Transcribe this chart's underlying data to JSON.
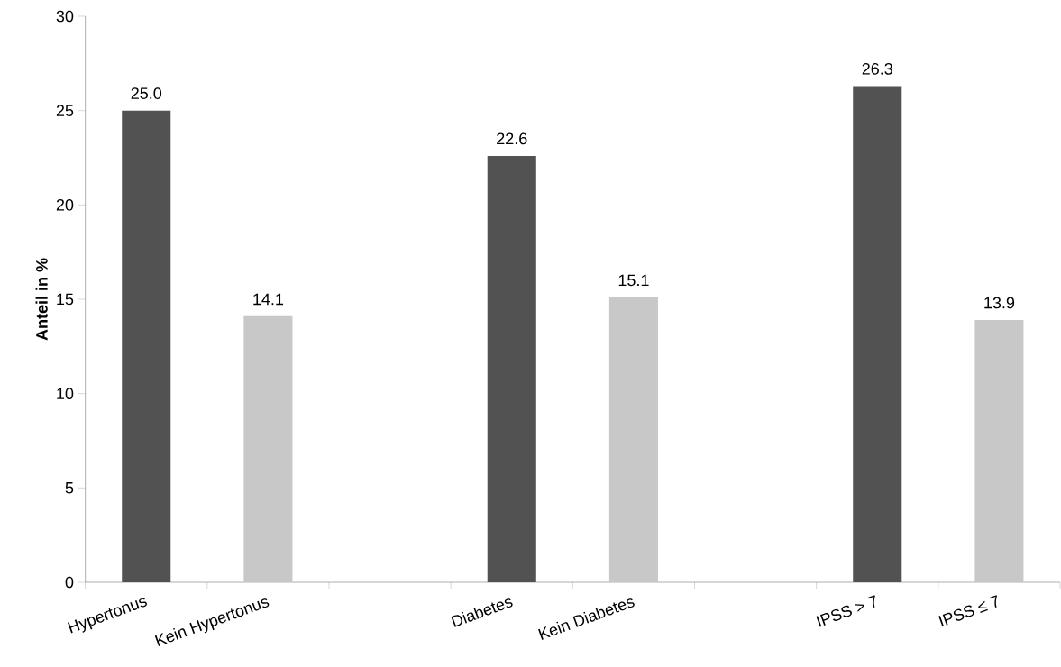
{
  "chart_data": {
    "type": "bar",
    "ylabel": "**Anteil in %**",
    "categories": [
      "Hypertonus",
      "Kein Hypertonus",
      null,
      "Diabetes",
      "Kein Diabetes",
      null,
      "IPSS > 7",
      "IPSS ≤ 7"
    ],
    "values": [
      25.0,
      14.1,
      null,
      22.6,
      15.1,
      null,
      26.3,
      13.9
    ],
    "value_labels": [
      "25.0",
      "14.1",
      null,
      "22.6",
      "15.1",
      null,
      "26.3",
      "13.9"
    ],
    "colors": [
      "#525252",
      "#c8c8c8",
      null,
      "#525252",
      "#c8c8c8",
      null,
      "#525252",
      "#c8c8c8"
    ],
    "ylim": [
      0,
      30
    ],
    "yticks": [
      0,
      5,
      10,
      15,
      20,
      25,
      30
    ]
  }
}
